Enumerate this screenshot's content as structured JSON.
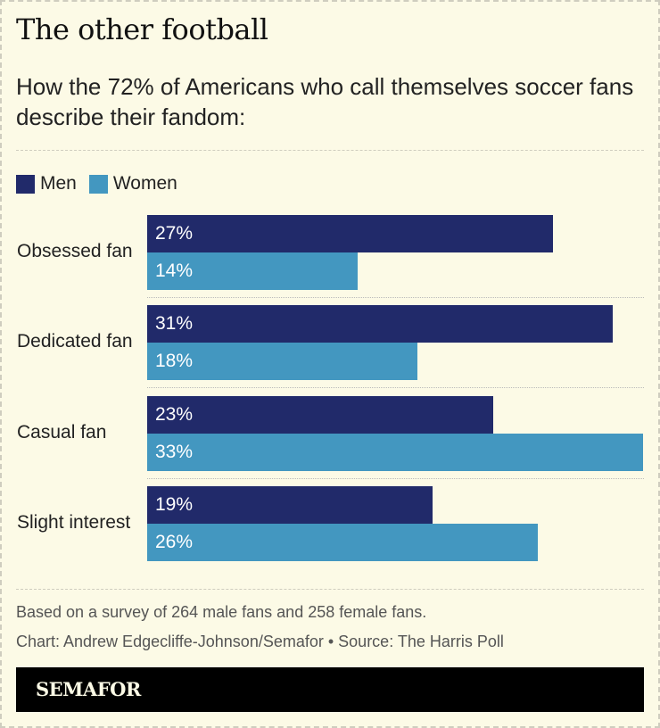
{
  "title": "The other football",
  "subtitle": "How the 72% of Americans who call themselves soccer fans describe their fandom:",
  "chart_data": {
    "type": "bar",
    "orientation": "horizontal",
    "categories": [
      "Obsessed fan",
      "Dedicated fan",
      "Casual fan",
      "Slight interest"
    ],
    "series": [
      {
        "name": "Men",
        "color": "#212a6a",
        "values": [
          27,
          31,
          23,
          19
        ],
        "labels": [
          "27%",
          "31%",
          "23%",
          "19%"
        ]
      },
      {
        "name": "Women",
        "color": "#4397c0",
        "values": [
          14,
          18,
          33,
          26
        ],
        "labels": [
          "14%",
          "18%",
          "33%",
          "26%"
        ]
      }
    ],
    "unit": "%",
    "xlim": [
      0,
      33
    ],
    "grid": false,
    "legend": "top-left"
  },
  "notes": {
    "survey": "Based on a survey of 264 male fans and 258 female fans.",
    "credit": "Chart: Andrew Edgecliffe-Johnson/Semafor • Source: The Harris Poll"
  },
  "brand": "SEMAFOR"
}
